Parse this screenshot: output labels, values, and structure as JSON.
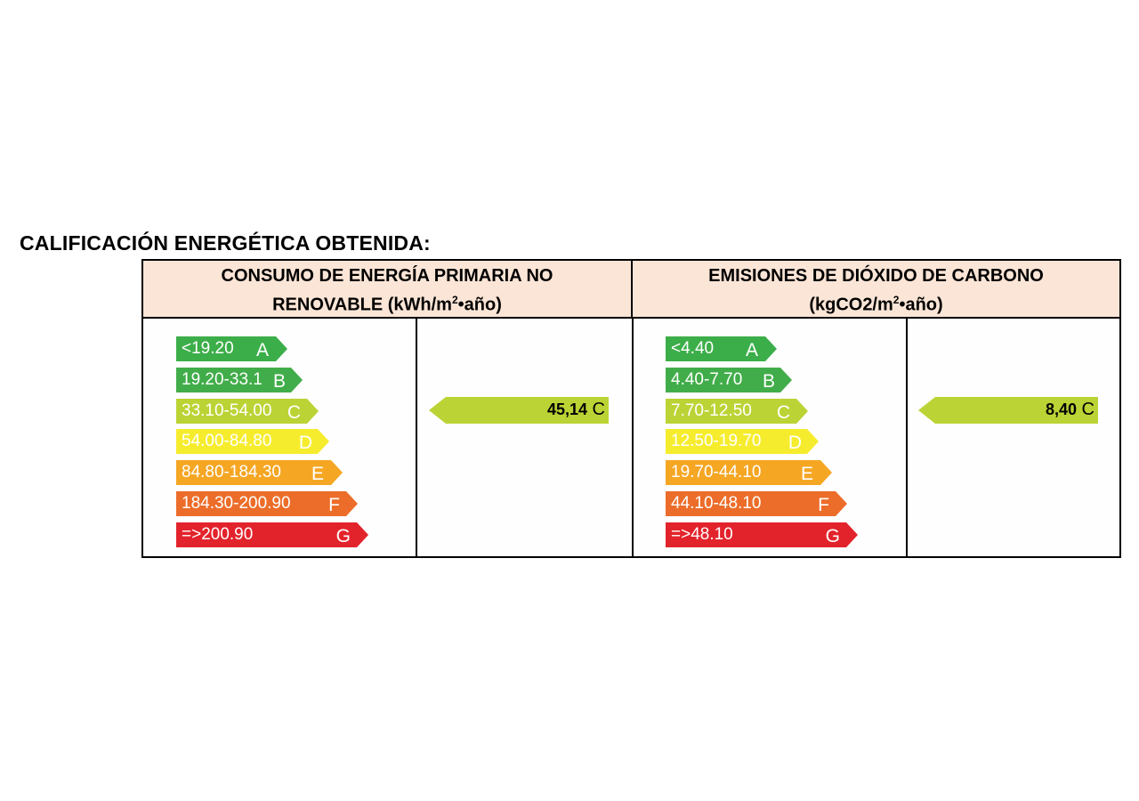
{
  "title": "CALIFICACIÓN ENERGÉTICA OBTENIDA:",
  "colors": {
    "A": "#3cae49",
    "B": "#41ad4a",
    "C": "#bcd335",
    "D": "#f6ec2e",
    "E": "#f5a623",
    "F": "#ec6d2a",
    "G": "#e3232b",
    "header_bg": "#fbe5d6",
    "result_arrow": "#bcd335"
  },
  "consumption": {
    "header_line1": "CONSUMO  DE ENERGÍA PRIMARIA NO",
    "header_line2_prefix": "RENOVABLE (kWh/m",
    "header_sup": "2",
    "header_line2_suffix": "•año)",
    "bands": [
      {
        "range": "<19.20",
        "letter": "A"
      },
      {
        "range": "19.20-33.1",
        "letter": "B"
      },
      {
        "range": "33.10-54.00",
        "letter": "C"
      },
      {
        "range": "54.00-84.80",
        "letter": "D"
      },
      {
        "range": "84.80-184.30",
        "letter": "E"
      },
      {
        "range": "184.30-200.90",
        "letter": "F"
      },
      {
        "range": "=>200.90",
        "letter": "G"
      }
    ],
    "result_value": "45,14",
    "result_letter": "C"
  },
  "emissions": {
    "header_line1": "EMISIONES DE DIÓXIDO DE CARBONO",
    "header_line2_prefix": "(kgCO2/m",
    "header_sup": "2",
    "header_line2_suffix": "•año)",
    "bands": [
      {
        "range": "<4.40",
        "letter": "A"
      },
      {
        "range": "4.40-7.70",
        "letter": "B"
      },
      {
        "range": "7.70-12.50",
        "letter": "C"
      },
      {
        "range": "12.50-19.70",
        "letter": "D"
      },
      {
        "range": "19.70-44.10",
        "letter": "E"
      },
      {
        "range": "44.10-48.10",
        "letter": "F"
      },
      {
        "range": "=>48.10",
        "letter": "G"
      }
    ],
    "result_value": "8,40",
    "result_letter": "C"
  }
}
